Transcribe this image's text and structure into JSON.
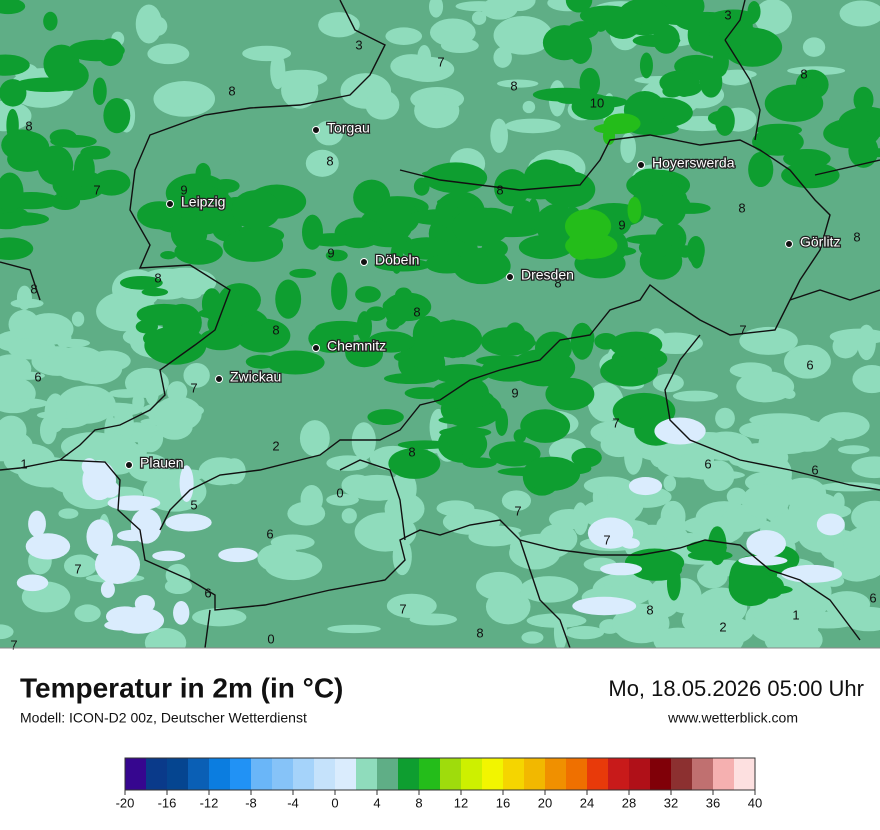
{
  "header": {
    "title": "Temperatur in 2m (in °C)",
    "subtitle": "Modell: ICON-D2 00z, Deutscher Wetterdienst",
    "datetime": "Mo, 18.05.2026 05:00 Uhr",
    "website": "www.wetterblick.com"
  },
  "cities": [
    "Torgau",
    "Hoyerswerda",
    "Leipzig",
    "Görlitz",
    "Döbeln",
    "Dresden",
    "Chemnitz",
    "Zwickau",
    "Plauen"
  ],
  "map_labels": [
    "3",
    "7",
    "8",
    "8",
    "8",
    "10",
    "3",
    "8",
    "8",
    "9",
    "7",
    "8",
    "8",
    "9",
    "8",
    "9",
    "8",
    "8",
    "8",
    "8",
    "8",
    "7",
    "6",
    "6",
    "7",
    "9",
    "7",
    "2",
    "8",
    "1",
    "6",
    "6",
    "0",
    "5",
    "7",
    "6",
    "7",
    "7",
    "6",
    "7",
    "8",
    "1",
    "6",
    "2",
    "8",
    "0",
    "7"
  ],
  "legend": {
    "colors": [
      "#36068f",
      "#0a3a8a",
      "#054590",
      "#0a5fb5",
      "#0b7de0",
      "#2192f5",
      "#6ab6f8",
      "#86c3f8",
      "#a5d3fa",
      "#c5e2fb",
      "#daecfd",
      "#8fdcbc",
      "#5fae86",
      "#0e9e30",
      "#24bd1a",
      "#9fdc0c",
      "#cdf000",
      "#f2f500",
      "#f5d500",
      "#f2b800",
      "#f09000",
      "#ef7000",
      "#e83a0a",
      "#c81a1a",
      "#b01018",
      "#800008",
      "#8c3030",
      "#c07070",
      "#f5b0b0",
      "#fde0e0"
    ],
    "ticks": [
      -20,
      -16,
      -12,
      -8,
      -4,
      0,
      4,
      8,
      12,
      16,
      20,
      24,
      28,
      32,
      36,
      40
    ]
  }
}
